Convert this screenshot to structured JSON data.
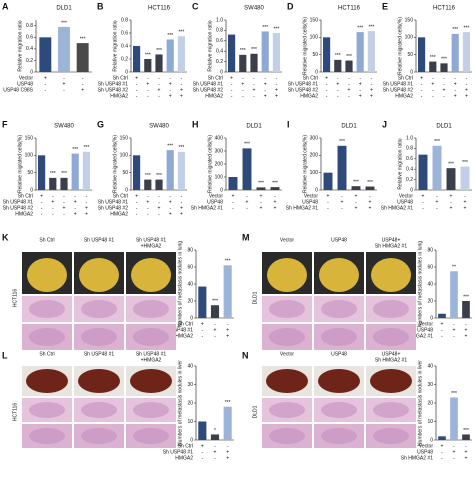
{
  "chart_data": [
    {
      "type": "bar",
      "panel": "A",
      "title": "DLD1",
      "ylabel": "Relative migration ratio",
      "values": [
        0.6,
        0.78,
        0.5
      ],
      "colors": [
        "#2e4a7a",
        "#9db4d9",
        "#4a4a4a"
      ],
      "ylim": [
        0,
        0.9
      ],
      "yticks": [
        0,
        0.2,
        0.4,
        0.6,
        0.8
      ],
      "sig": [
        null,
        "***",
        "***"
      ],
      "conditions": {
        "labels": [
          "Vector",
          "USP48",
          "USP48 C98S"
        ],
        "signs": [
          [
            "+",
            "-",
            "-"
          ],
          [
            "-",
            "+",
            "-"
          ],
          [
            "-",
            "-",
            "+"
          ]
        ]
      }
    },
    {
      "type": "bar",
      "panel": "B",
      "title": "HCT116",
      "ylabel": "Relative migration ratio",
      "values": [
        0.4,
        0.2,
        0.27,
        0.5,
        0.55
      ],
      "colors": [
        "#2e4a7a",
        "#3a3f4a",
        "#3a3f4a",
        "#8ea9d4",
        "#c3cfe6"
      ],
      "ylim": [
        0,
        0.8
      ],
      "yticks": [
        0,
        0.2,
        0.4,
        0.6,
        0.8
      ],
      "sig": [
        null,
        "***",
        "***",
        "***",
        "***"
      ],
      "conditions": {
        "labels": [
          "Sh Ctrl",
          "Sh USP48 #1",
          "Sh USP48 #2",
          "HMGA2"
        ],
        "signs": [
          [
            "+",
            "-",
            "-",
            "-",
            "-"
          ],
          [
            "-",
            "+",
            "-",
            "+",
            "-"
          ],
          [
            "-",
            "-",
            "+",
            "-",
            "+"
          ],
          [
            "-",
            "-",
            "-",
            "+",
            "+"
          ]
        ]
      }
    },
    {
      "type": "bar",
      "panel": "C",
      "title": "SW480",
      "ylabel": "Relative migration ratio",
      "values": [
        0.72,
        0.33,
        0.35,
        0.78,
        0.75
      ],
      "colors": [
        "#2e4a7a",
        "#3a3f4a",
        "#3a3f4a",
        "#8ea9d4",
        "#c3cfe6"
      ],
      "ylim": [
        0,
        1
      ],
      "yticks": [
        0,
        0.2,
        0.4,
        0.6,
        0.8,
        {
          "value": 1,
          "label": "1.0"
        }
      ],
      "sig": [
        null,
        "***",
        "***",
        "***",
        "***"
      ],
      "conditions": {
        "labels": [
          "Sh Ctrl",
          "Sh USP48 #1",
          "Sh USP48 #2",
          "HMGA2"
        ],
        "signs": [
          [
            "+",
            "-",
            "-",
            "-",
            "-"
          ],
          [
            "-",
            "+",
            "-",
            "+",
            "-"
          ],
          [
            "-",
            "-",
            "+",
            "-",
            "+"
          ],
          [
            "-",
            "-",
            "-",
            "+",
            "+"
          ]
        ]
      }
    },
    {
      "type": "bar",
      "panel": "D",
      "title": "HCT116",
      "ylabel": "Relative migrated cells(%)",
      "values": [
        100,
        35,
        33,
        115,
        118
      ],
      "colors": [
        "#2e4a7a",
        "#3a3f4a",
        "#3a3f4a",
        "#8ea9d4",
        "#c3cfe6"
      ],
      "ylim": [
        0,
        150
      ],
      "yticks": [
        0,
        50,
        100,
        150
      ],
      "sig": [
        null,
        "***",
        "***",
        "***",
        "***"
      ],
      "conditions": {
        "labels": [
          "Sh Ctrl",
          "Sh USP48 #1",
          "Sh USP48 #2",
          "HMGA2"
        ],
        "signs": [
          [
            "+",
            "-",
            "-",
            "-",
            "-"
          ],
          [
            "-",
            "+",
            "-",
            "+",
            "-"
          ],
          [
            "-",
            "-",
            "+",
            "-",
            "+"
          ],
          [
            "-",
            "-",
            "-",
            "+",
            "+"
          ]
        ]
      }
    },
    {
      "type": "bar",
      "panel": "E",
      "title": "HCT116",
      "ylabel": "Relative migrated cells(%)",
      "values": [
        100,
        30,
        25,
        110,
        115
      ],
      "colors": [
        "#2e4a7a",
        "#3a3f4a",
        "#3a3f4a",
        "#8ea9d4",
        "#c3cfe6"
      ],
      "ylim": [
        0,
        150
      ],
      "yticks": [
        0,
        50,
        100,
        150
      ],
      "sig": [
        null,
        "***",
        "***",
        "***",
        "***"
      ],
      "conditions": {
        "labels": [
          "Sh Ctrl",
          "Sh USP48 #1",
          "Sh USP48 #2",
          "HMGA2"
        ],
        "signs": [
          [
            "+",
            "-",
            "-",
            "-",
            "-"
          ],
          [
            "-",
            "+",
            "-",
            "+",
            "-"
          ],
          [
            "-",
            "-",
            "+",
            "-",
            "+"
          ],
          [
            "-",
            "-",
            "-",
            "+",
            "+"
          ]
        ]
      }
    },
    {
      "type": "bar",
      "panel": "F",
      "title": "SW480",
      "ylabel": "Relative migrated cells(%)",
      "values": [
        100,
        35,
        35,
        105,
        110
      ],
      "colors": [
        "#2e4a7a",
        "#3a3f4a",
        "#3a3f4a",
        "#8ea9d4",
        "#c3cfe6"
      ],
      "ylim": [
        0,
        150
      ],
      "yticks": [
        0,
        50,
        100,
        150
      ],
      "sig": [
        null,
        "***",
        "***",
        "***",
        "***"
      ],
      "conditions": {
        "labels": [
          "Sh Ctrl",
          "Sh USP48 #1",
          "Sh USP48 #2",
          "HMGA2"
        ],
        "signs": [
          [
            "+",
            "-",
            "-",
            "-",
            "-"
          ],
          [
            "-",
            "+",
            "-",
            "+",
            "-"
          ],
          [
            "-",
            "-",
            "+",
            "-",
            "+"
          ],
          [
            "-",
            "-",
            "-",
            "+",
            "+"
          ]
        ]
      }
    },
    {
      "type": "bar",
      "panel": "G",
      "title": "SW480",
      "ylabel": "Relative migrated cells(%)",
      "values": [
        100,
        30,
        30,
        115,
        110
      ],
      "colors": [
        "#2e4a7a",
        "#3a3f4a",
        "#3a3f4a",
        "#8ea9d4",
        "#c3cfe6"
      ],
      "ylim": [
        0,
        150
      ],
      "yticks": [
        0,
        50,
        100,
        150
      ],
      "sig": [
        null,
        "***",
        "***",
        "***",
        "***"
      ],
      "conditions": {
        "labels": [
          "Sh Ctrl",
          "Sh USP48 #1",
          "Sh USP48 #2",
          "HMGA2"
        ],
        "signs": [
          [
            "+",
            "-",
            "-",
            "-",
            "-"
          ],
          [
            "-",
            "+",
            "-",
            "+",
            "-"
          ],
          [
            "-",
            "-",
            "+",
            "-",
            "+"
          ],
          [
            "-",
            "-",
            "-",
            "+",
            "+"
          ]
        ]
      }
    },
    {
      "type": "bar",
      "panel": "H",
      "title": "DLD1",
      "ylabel": "Relative migrated cells(%)",
      "values": [
        100,
        320,
        20,
        22
      ],
      "colors": [
        "#2e4a7a",
        "#2e4a7a",
        "#3a3f4a",
        "#3a3f4a"
      ],
      "ylim": [
        0,
        400
      ],
      "yticks": [
        0,
        100,
        200,
        300,
        400
      ],
      "sig": [
        null,
        "***",
        "***",
        "***"
      ],
      "conditions": {
        "labels": [
          "Vector",
          "USP48",
          "Sh HMGA2 #1"
        ],
        "signs": [
          [
            "+",
            "-",
            "+",
            "-"
          ],
          [
            "-",
            "+",
            "-",
            "+"
          ],
          [
            "-",
            "-",
            "+",
            "+"
          ]
        ]
      }
    },
    {
      "type": "bar",
      "panel": "I",
      "title": "DLD1",
      "ylabel": "Relative migrated cells(%)",
      "values": [
        100,
        255,
        22,
        20
      ],
      "colors": [
        "#2e4a7a",
        "#2e4a7a",
        "#3a3f4a",
        "#3a3f4a"
      ],
      "ylim": [
        0,
        300
      ],
      "yticks": [
        0,
        100,
        200,
        300
      ],
      "sig": [
        null,
        "***",
        "***",
        "***"
      ],
      "conditions": {
        "labels": [
          "Vector",
          "USP48",
          "Sh HMGA2 #1"
        ],
        "signs": [
          [
            "+",
            "-",
            "+",
            "-"
          ],
          [
            "-",
            "+",
            "-",
            "+"
          ],
          [
            "-",
            "-",
            "+",
            "+"
          ]
        ]
      }
    },
    {
      "type": "bar",
      "panel": "J",
      "title": "DLD1",
      "ylabel": "Relative migration ratio",
      "values": [
        0.68,
        0.85,
        0.42,
        0.45
      ],
      "colors": [
        "#2e4a7a",
        "#9db4d9",
        "#3a3f4a",
        "#c3cfe6"
      ],
      "ylim": [
        0,
        1
      ],
      "yticks": [
        0,
        0.2,
        0.4,
        0.6,
        0.8,
        {
          "value": 1,
          "label": "1.0"
        }
      ],
      "sig": [
        null,
        "***",
        "***",
        "***"
      ],
      "conditions": {
        "labels": [
          "Vector",
          "USP48",
          "Sh HMGA2 #1"
        ],
        "signs": [
          [
            "+",
            "-",
            "+",
            "-"
          ],
          [
            "-",
            "+",
            "-",
            "+"
          ],
          [
            "-",
            "-",
            "+",
            "+"
          ]
        ]
      }
    },
    {
      "type": "bar",
      "panel": "K",
      "ylabel": "Numbers of metastasis nodules in lung",
      "values": [
        37,
        15,
        62
      ],
      "colors": [
        "#2e4a7a",
        "#3a3f4a",
        "#9db4d9"
      ],
      "ylim": [
        0,
        80
      ],
      "yticks": [
        0,
        20,
        40,
        60,
        80
      ],
      "sig": [
        null,
        "***",
        "***"
      ],
      "conditions": {
        "labels": [
          "Sh Ctrl",
          "Sh USP48 #1",
          "HMGA2"
        ],
        "signs": [
          [
            "+",
            "-",
            "-"
          ],
          [
            "-",
            "+",
            "+"
          ],
          [
            "-",
            "-",
            "+"
          ]
        ]
      }
    },
    {
      "type": "bar",
      "panel": "M",
      "ylabel": "Numbers of metastasis nodules in lung",
      "values": [
        5,
        55,
        20
      ],
      "colors": [
        "#2e4a7a",
        "#9db4d9",
        "#3a3f4a"
      ],
      "ylim": [
        0,
        80
      ],
      "yticks": [
        0,
        20,
        40,
        60,
        80
      ],
      "sig": [
        null,
        "**",
        "***"
      ],
      "conditions": {
        "labels": [
          "Vector",
          "USP48",
          "Sh HMGA2 #1"
        ],
        "signs": [
          [
            "+",
            "-",
            "-"
          ],
          [
            "-",
            "+",
            "+"
          ],
          [
            "-",
            "-",
            "+"
          ]
        ]
      }
    },
    {
      "type": "bar",
      "panel": "L",
      "ylabel": "Numbers of metastasis nodules in liver",
      "values": [
        10,
        3,
        18
      ],
      "colors": [
        "#2e4a7a",
        "#3a3f4a",
        "#9db4d9"
      ],
      "ylim": [
        0,
        40
      ],
      "yticks": [
        0,
        10,
        20,
        30,
        40
      ],
      "sig": [
        null,
        "*",
        "***"
      ],
      "conditions": {
        "labels": [
          "Sh Ctrl",
          "Sh USP48 #1",
          "HMGA2"
        ],
        "signs": [
          [
            "+",
            "-",
            "-"
          ],
          [
            "-",
            "+",
            "+"
          ],
          [
            "-",
            "-",
            "+"
          ]
        ]
      }
    },
    {
      "type": "bar",
      "panel": "N",
      "ylabel": "Numbers of metastasis nodules in liver",
      "values": [
        2,
        23,
        3
      ],
      "colors": [
        "#2e4a7a",
        "#9db4d9",
        "#3a3f4a"
      ],
      "ylim": [
        0,
        40
      ],
      "yticks": [
        0,
        10,
        20,
        30,
        40
      ],
      "sig": [
        null,
        "***",
        "***"
      ],
      "conditions": {
        "labels": [
          "Vector",
          "USP48",
          "Sh HMGA2 #1"
        ],
        "signs": [
          [
            "+",
            "-",
            "-"
          ],
          [
            "-",
            "+",
            "+"
          ],
          [
            "-",
            "-",
            "+"
          ]
        ]
      }
    }
  ],
  "figures": [
    {
      "cell_line": "HCT116",
      "organ": "lung",
      "columns": [
        [
          "Sh Ctrl"
        ],
        [
          "Sh USP48 #1"
        ],
        [
          "Sh USP48 #1",
          "+HMGA2"
        ]
      ]
    },
    {
      "cell_line": "DLD1",
      "organ": "lung",
      "columns": [
        [
          "Vector"
        ],
        [
          "USP48"
        ],
        [
          "USP48+",
          "Sh HMGA2 #1"
        ]
      ]
    },
    {
      "cell_line": "HCT116",
      "organ": "liver",
      "columns": [
        [
          "Sh Ctrl"
        ],
        [
          "Sh USP48 #1"
        ],
        [
          "Sh USP48 #1",
          "+HMGA2"
        ]
      ]
    },
    {
      "cell_line": "DLD1",
      "organ": "liver",
      "columns": [
        [
          "Vector"
        ],
        [
          "USP48"
        ],
        [
          "USP48+",
          "Sh HMGA2 #1"
        ]
      ]
    }
  ]
}
